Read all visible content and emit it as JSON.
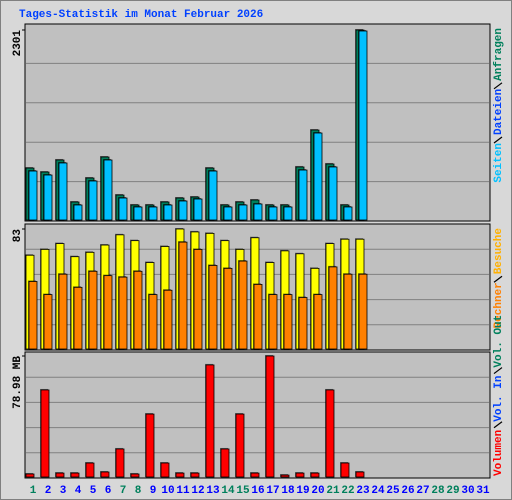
{
  "chart_data": [
    {
      "type": "bar",
      "title": "Tages-Statistik im Monat Februar 2026",
      "legend": "top",
      "ylim": [
        0,
        2301
      ],
      "yticks": [
        2301
      ],
      "series": [
        {
          "name": "Anfragen",
          "color": "#00805c",
          "label_color": "#00805c",
          "values": [
            638,
            590,
            735,
            229,
            518,
            771,
            313,
            193,
            193,
            229,
            277,
            289,
            638,
            193,
            229,
            253,
            193,
            193,
            651,
            1096,
            687,
            193,
            2301,
            null,
            null,
            null,
            null,
            null,
            null,
            null,
            null
          ]
        },
        {
          "name": "Dateien",
          "color": "#00c0ff",
          "label_color": "#0040ff",
          "values": [
            602,
            554,
            699,
            193,
            482,
            735,
            277,
            169,
            169,
            193,
            241,
            265,
            602,
            169,
            193,
            205,
            169,
            169,
            614,
            1060,
            651,
            169,
            2289,
            null,
            null,
            null,
            null,
            null,
            null,
            null,
            null
          ]
        },
        {
          "name": "Seiten",
          "color": "#00e0ff",
          "label_color": "#00c0ff",
          "values": [
            null,
            null,
            null,
            null,
            null,
            null,
            null,
            null,
            null,
            null,
            null,
            null,
            null,
            null,
            null,
            null,
            null,
            null,
            null,
            null,
            null,
            null,
            null,
            null,
            null,
            null,
            null,
            null,
            null,
            null,
            null
          ]
        }
      ]
    },
    {
      "type": "bar",
      "legend": "top",
      "ylim": [
        0,
        83
      ],
      "yticks": [
        83
      ],
      "series": [
        {
          "name": "Besuche",
          "color": "#ffff00",
          "label_color": "#ffb000",
          "values": [
            65,
            69,
            73,
            64,
            67,
            72,
            79,
            75,
            60,
            71,
            83,
            81,
            80,
            75,
            69,
            77,
            60,
            68,
            66,
            56,
            73,
            76,
            76,
            null,
            null,
            null,
            null,
            null,
            null,
            null,
            null
          ]
        },
        {
          "name": "Rechner",
          "color": "#ff8000",
          "label_color": "#ff8000",
          "values": [
            47,
            38,
            52,
            43,
            54,
            51,
            50,
            54,
            38,
            41,
            74,
            69,
            58,
            56,
            61,
            45,
            38,
            38,
            36,
            38,
            57,
            52,
            52,
            null,
            null,
            null,
            null,
            null,
            null,
            null,
            null
          ]
        }
      ]
    },
    {
      "type": "bar",
      "legend": "bottom",
      "ylim": [
        0,
        78.98
      ],
      "yticks": [
        {
          "value": 78.98,
          "label": "78.98 MB"
        }
      ],
      "categories": [
        "1",
        "2",
        "3",
        "4",
        "5",
        "6",
        "7",
        "8",
        "9",
        "10",
        "11",
        "12",
        "13",
        "14",
        "15",
        "16",
        "17",
        "18",
        "19",
        "20",
        "21",
        "22",
        "23",
        "24",
        "25",
        "26",
        "27",
        "28",
        "29",
        "30",
        "31"
      ],
      "category_colors": [
        "#00805c",
        "#0000ff",
        "#0000ff",
        "#0000ff",
        "#0000ff",
        "#0000ff",
        "#00805c",
        "#00805c",
        "#0000ff",
        "#0000ff",
        "#0000ff",
        "#0000ff",
        "#0000ff",
        "#00805c",
        "#00805c",
        "#0000ff",
        "#0000ff",
        "#0000ff",
        "#0000ff",
        "#0000ff",
        "#00805c",
        "#00805c",
        "#0000ff",
        "#0000ff",
        "#0000ff",
        "#0000ff",
        "#0000ff",
        "#00805c",
        "#00805c",
        "#0000ff",
        "#0000ff"
      ],
      "series": [
        {
          "name": "Volumen",
          "color": "#ff0000",
          "label_color": "#ff0000",
          "values": [
            2.6,
            57,
            3.2,
            3.2,
            9.7,
            3.9,
            18.8,
            2.6,
            41.4,
            9.7,
            3.2,
            3.2,
            73.2,
            18.8,
            41.4,
            3.2,
            78.98,
            1.9,
            3.2,
            3.2,
            57,
            9.7,
            3.9,
            null,
            null,
            null,
            null,
            null,
            null,
            null,
            null
          ]
        },
        {
          "name": "Vol. In",
          "color": "#0080ff",
          "label_color": "#0040ff",
          "values": [
            null,
            null,
            null,
            null,
            null,
            null,
            null,
            null,
            null,
            null,
            null,
            null,
            null,
            null,
            null,
            null,
            null,
            null,
            null,
            null,
            null,
            null,
            null,
            null,
            null,
            null,
            null,
            null,
            null,
            null,
            null
          ]
        },
        {
          "name": "Vol. Out",
          "color": "#00c000",
          "label_color": "#00805c",
          "values": [
            null,
            null,
            null,
            null,
            null,
            null,
            null,
            null,
            null,
            null,
            null,
            null,
            null,
            null,
            null,
            null,
            null,
            null,
            null,
            null,
            null,
            null,
            null,
            null,
            null,
            null,
            null,
            null,
            null,
            null,
            null
          ]
        }
      ]
    }
  ]
}
